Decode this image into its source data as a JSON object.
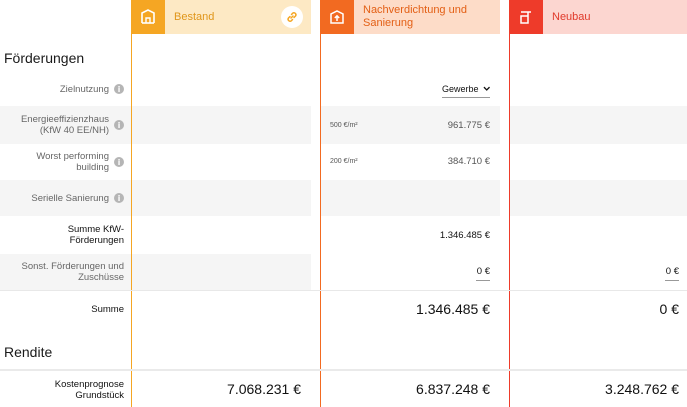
{
  "columns": [
    {
      "key": "bestand",
      "label": "Bestand",
      "icon": "building-outline-icon",
      "accent": "#f5a623",
      "tint": "#fde9c4",
      "text": "#e0961a"
    },
    {
      "key": "nachverdichtung",
      "label": "Nachverdichtung und Sanierung",
      "icon": "building-upload-icon",
      "accent": "#f26a21",
      "tint": "#fddcc8",
      "text": "#e35f15"
    },
    {
      "key": "neubau",
      "label": "Neubau",
      "icon": "crane-icon",
      "accent": "#ee3b2a",
      "tint": "#fcd6d0",
      "text": "#e0392a"
    }
  ],
  "sections": {
    "foerderungen": "Förderungen",
    "rendite": "Rendite"
  },
  "rows": {
    "zielnutzung": {
      "label": "Zielnutzung",
      "select_value": "Gewerbe"
    },
    "energie": {
      "label_line1": "Energieeffizienzhaus",
      "label_line2": "(KfW 40 EE/NH)",
      "unit": "500 €/m²",
      "value": "961.775 €"
    },
    "worst": {
      "label_line1": "Worst performing",
      "label_line2": "building",
      "unit": "200 €/m²",
      "value": "384.710 €"
    },
    "seriell": {
      "label": "Serielle Sanierung"
    },
    "summe_kfw": {
      "label_line1": "Summe KfW-",
      "label_line2": "Förderungen",
      "value": "1.346.485 €"
    },
    "sonst": {
      "label_line1": "Sonst. Förderungen und",
      "label_line2": "Zuschüsse",
      "value_nach": "0 €",
      "value_neubau": "0 €"
    },
    "summe": {
      "label": "Summe",
      "value_nach": "1.346.485 €",
      "value_neubau": "0 €"
    },
    "kosten": {
      "label_line1": "Kostenprognose",
      "label_line2": "Grundstück",
      "value_bestand": "7.068.231 €",
      "value_nach": "6.837.248 €",
      "value_neubau": "3.248.762 €"
    }
  }
}
